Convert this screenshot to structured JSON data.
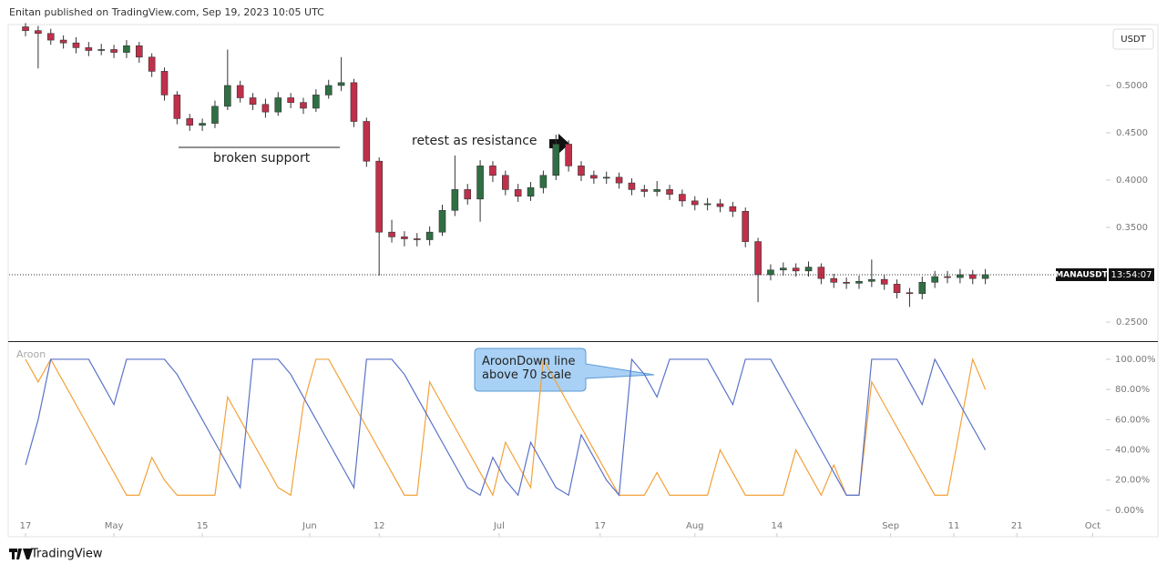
{
  "header": "Enitan published on TradingView.com, Sep 19, 2023 10:05 UTC",
  "footer": "TradingView",
  "chart_data": [
    {
      "type": "candlestick",
      "symbol": "MANAUSDT",
      "currency": "USDT",
      "countdown": "13:54:07",
      "up_color": "#2f6f43",
      "down_color": "#c0304a",
      "annotations": [
        "retest as resistance",
        "broken support"
      ],
      "x": [
        0,
        2,
        4,
        6,
        8,
        10,
        12,
        14,
        16,
        18,
        20,
        22,
        24,
        26,
        28,
        30,
        32,
        34,
        36,
        38,
        40,
        42,
        44,
        46,
        48,
        50,
        52,
        54,
        56,
        58,
        60,
        62,
        64,
        66,
        68,
        70,
        72,
        74,
        76,
        78,
        80,
        82,
        84,
        86,
        88,
        90,
        92,
        94,
        96,
        98,
        100,
        102,
        104,
        106,
        108,
        110,
        112,
        114,
        116,
        118,
        120,
        122,
        124,
        126,
        128,
        130,
        132,
        134,
        136,
        138,
        140,
        142,
        144,
        146,
        148,
        150,
        152
      ],
      "open": [
        0.562,
        0.558,
        0.555,
        0.548,
        0.545,
        0.54,
        0.537,
        0.538,
        0.535,
        0.542,
        0.53,
        0.515,
        0.49,
        0.465,
        0.458,
        0.46,
        0.478,
        0.5,
        0.487,
        0.48,
        0.472,
        0.487,
        0.482,
        0.476,
        0.49,
        0.5,
        0.503,
        0.462,
        0.42,
        0.345,
        0.34,
        0.338,
        0.337,
        0.345,
        0.368,
        0.39,
        0.38,
        0.415,
        0.405,
        0.39,
        0.383,
        0.392,
        0.405,
        0.438,
        0.415,
        0.405,
        0.402,
        0.403,
        0.397,
        0.39,
        0.388,
        0.39,
        0.385,
        0.378,
        0.374,
        0.375,
        0.372,
        0.367,
        0.335,
        0.3,
        0.305,
        0.307,
        0.304,
        0.308,
        0.296,
        0.292,
        0.291,
        0.293,
        0.295,
        0.29,
        0.281,
        0.28,
        0.292,
        0.298,
        0.297,
        0.3,
        0.296
      ],
      "high": [
        0.566,
        0.563,
        0.56,
        0.553,
        0.551,
        0.546,
        0.544,
        0.543,
        0.548,
        0.546,
        0.534,
        0.519,
        0.494,
        0.47,
        0.465,
        0.484,
        0.538,
        0.505,
        0.492,
        0.486,
        0.493,
        0.492,
        0.487,
        0.496,
        0.506,
        0.53,
        0.507,
        0.466,
        0.424,
        0.358,
        0.346,
        0.344,
        0.351,
        0.374,
        0.426,
        0.396,
        0.421,
        0.42,
        0.41,
        0.396,
        0.398,
        0.41,
        0.448,
        0.442,
        0.42,
        0.41,
        0.409,
        0.408,
        0.402,
        0.395,
        0.399,
        0.395,
        0.39,
        0.383,
        0.381,
        0.38,
        0.377,
        0.371,
        0.339,
        0.311,
        0.313,
        0.312,
        0.314,
        0.312,
        0.301,
        0.297,
        0.299,
        0.316,
        0.3,
        0.295,
        0.286,
        0.298,
        0.304,
        0.304,
        0.306,
        0.305,
        0.306
      ],
      "low": [
        0.552,
        0.518,
        0.543,
        0.539,
        0.534,
        0.531,
        0.532,
        0.529,
        0.529,
        0.524,
        0.509,
        0.484,
        0.459,
        0.452,
        0.452,
        0.455,
        0.474,
        0.482,
        0.474,
        0.466,
        0.468,
        0.476,
        0.47,
        0.472,
        0.486,
        0.494,
        0.456,
        0.414,
        0.299,
        0.334,
        0.33,
        0.33,
        0.331,
        0.341,
        0.362,
        0.374,
        0.356,
        0.398,
        0.384,
        0.377,
        0.378,
        0.386,
        0.4,
        0.409,
        0.399,
        0.396,
        0.396,
        0.391,
        0.384,
        0.382,
        0.383,
        0.379,
        0.372,
        0.368,
        0.368,
        0.366,
        0.361,
        0.329,
        0.271,
        0.294,
        0.299,
        0.298,
        0.298,
        0.29,
        0.286,
        0.285,
        0.285,
        0.287,
        0.284,
        0.275,
        0.266,
        0.274,
        0.286,
        0.291,
        0.291,
        0.29,
        0.29
      ],
      "close": [
        0.558,
        0.555,
        0.548,
        0.545,
        0.54,
        0.537,
        0.538,
        0.535,
        0.542,
        0.53,
        0.515,
        0.49,
        0.465,
        0.458,
        0.46,
        0.478,
        0.5,
        0.487,
        0.48,
        0.472,
        0.487,
        0.482,
        0.476,
        0.49,
        0.5,
        0.503,
        0.462,
        0.42,
        0.345,
        0.34,
        0.338,
        0.337,
        0.345,
        0.368,
        0.39,
        0.38,
        0.415,
        0.405,
        0.39,
        0.383,
        0.392,
        0.405,
        0.438,
        0.415,
        0.405,
        0.402,
        0.403,
        0.397,
        0.39,
        0.388,
        0.39,
        0.385,
        0.378,
        0.374,
        0.375,
        0.372,
        0.367,
        0.335,
        0.3,
        0.305,
        0.307,
        0.304,
        0.308,
        0.296,
        0.292,
        0.291,
        0.293,
        0.295,
        0.29,
        0.281,
        0.28,
        0.292,
        0.298,
        0.297,
        0.3,
        0.296,
        0.3
      ],
      "xlim": [
        -2.6,
        171.1
      ],
      "ylim": [
        0.2298,
        0.5644
      ],
      "yticks": [
        {
          "value": 0.5,
          "label": "0.5000"
        },
        {
          "value": 0.45,
          "label": "0.4500"
        },
        {
          "value": 0.4,
          "label": "0.4000"
        },
        {
          "value": 0.35,
          "label": "0.3500"
        },
        {
          "value": 0.25,
          "label": "0.2500"
        }
      ]
    },
    {
      "type": "line",
      "title": "Aroon",
      "callout": "AroonDown line above 70 scale",
      "x": [
        0,
        2,
        4,
        6,
        8,
        10,
        12,
        14,
        16,
        18,
        20,
        22,
        24,
        26,
        28,
        30,
        32,
        34,
        36,
        38,
        40,
        42,
        44,
        46,
        48,
        50,
        52,
        54,
        56,
        58,
        60,
        62,
        64,
        66,
        68,
        70,
        72,
        74,
        76,
        78,
        80,
        82,
        84,
        86,
        88,
        90,
        92,
        94,
        96,
        98,
        100,
        102,
        104,
        106,
        108,
        110,
        112,
        114,
        116,
        118,
        120,
        122,
        124,
        126,
        128,
        130,
        132,
        134,
        136,
        138,
        140,
        142,
        144,
        146,
        148,
        150,
        152
      ],
      "series": [
        {
          "color": "#f2a23a",
          "values": [
            100,
            85,
            100,
            85,
            70,
            55,
            40,
            25,
            10,
            10,
            35,
            20,
            10,
            10,
            10,
            10,
            75,
            60,
            45,
            30,
            15,
            10,
            70,
            100,
            100,
            85,
            70,
            55,
            40,
            25,
            10,
            10,
            85,
            70,
            55,
            40,
            25,
            10,
            45,
            30,
            15,
            100,
            85,
            70,
            55,
            40,
            25,
            10,
            10,
            10,
            25,
            10,
            10,
            10,
            10,
            40,
            25,
            10,
            10,
            10,
            10,
            40,
            25,
            10,
            30,
            10,
            10,
            85,
            70,
            55,
            40,
            25,
            10,
            10,
            55,
            100,
            80
          ]
        },
        {
          "color": "#5a72c8",
          "values": [
            30,
            60,
            100,
            100,
            100,
            100,
            85,
            70,
            100,
            100,
            100,
            100,
            90,
            75,
            60,
            45,
            30,
            15,
            100,
            100,
            100,
            90,
            75,
            60,
            45,
            30,
            15,
            100,
            100,
            100,
            90,
            75,
            60,
            45,
            30,
            15,
            10,
            35,
            20,
            10,
            45,
            30,
            15,
            10,
            50,
            35,
            20,
            10,
            100,
            90,
            75,
            100,
            100,
            100,
            100,
            85,
            70,
            100,
            100,
            100,
            85,
            70,
            55,
            40,
            25,
            10,
            10,
            100,
            100,
            100,
            85,
            70,
            100,
            85,
            70,
            55,
            40
          ]
        }
      ],
      "xlim": [
        -2.6,
        171.1
      ],
      "ylim": [
        -17.5,
        110.8
      ],
      "yticks": [
        {
          "value": 100,
          "label": "100.00%"
        },
        {
          "value": 80,
          "label": "80.00%"
        },
        {
          "value": 60,
          "label": "60.00%"
        },
        {
          "value": 40,
          "label": "40.00%"
        },
        {
          "value": 20,
          "label": "20.00%"
        },
        {
          "value": 0,
          "label": "0.00%"
        }
      ],
      "xticks": [
        {
          "value": 0,
          "label": "17"
        },
        {
          "value": 14,
          "label": "May"
        },
        {
          "value": 28,
          "label": "15"
        },
        {
          "value": 45,
          "label": "Jun"
        },
        {
          "value": 56,
          "label": "12"
        },
        {
          "value": 75,
          "label": "Jul"
        },
        {
          "value": 91,
          "label": "17"
        },
        {
          "value": 106,
          "label": "Aug"
        },
        {
          "value": 119,
          "label": "14"
        },
        {
          "value": 137,
          "label": "Sep"
        },
        {
          "value": 147,
          "label": "11"
        },
        {
          "value": 157,
          "label": "21"
        },
        {
          "value": 169,
          "label": "Oct"
        }
      ]
    }
  ]
}
